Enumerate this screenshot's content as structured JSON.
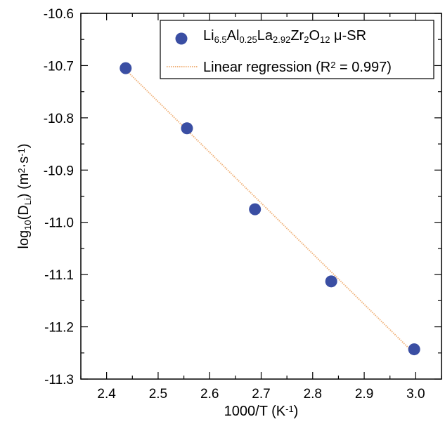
{
  "chart_data": {
    "type": "scatter",
    "xlabel": "1000/T (K⁻¹)",
    "xlabel_parts": {
      "main": "1000/T (K",
      "sup": "-1",
      "end": ")"
    },
    "ylabel": "log10(DLi) (m2·s-1)",
    "ylabel_parts": {
      "a": "log",
      "a_sub": "10",
      "b": "(D",
      "b_sub": "Li",
      "c": ") (m",
      "c_sup": "2",
      "d": "·s",
      "d_sup": "-1",
      "e": ")"
    },
    "xlim": [
      2.35,
      3.05
    ],
    "ylim": [
      -11.3,
      -10.6
    ],
    "xticks": [
      2.4,
      2.5,
      2.6,
      2.7,
      2.8,
      2.9,
      3.0
    ],
    "xtick_labels": [
      "2.4",
      "2.5",
      "2.6",
      "2.7",
      "2.8",
      "2.9",
      "3.0"
    ],
    "yticks": [
      -10.6,
      -10.7,
      -10.8,
      -10.9,
      -11.0,
      -11.1,
      -11.2,
      -11.3
    ],
    "ytick_labels": [
      "-10.6",
      "-10.7",
      "-10.8",
      "-10.9",
      "-11.0",
      "-11.1",
      "-11.2",
      "-11.3"
    ],
    "grid": false,
    "legend_position": "top-right",
    "series": [
      {
        "name": "Li6.5Al0.25La2.92Zr2O12 μ-SR",
        "name_parts": [
          {
            "t": "Li"
          },
          {
            "sub": "6.5"
          },
          {
            "t": "Al"
          },
          {
            "sub": "0.25"
          },
          {
            "t": "La"
          },
          {
            "sub": "2.92"
          },
          {
            "t": "Zr"
          },
          {
            "sub": "2"
          },
          {
            "t": "O"
          },
          {
            "sub": "12"
          },
          {
            "t": " μ-SR"
          }
        ],
        "kind": "scatter",
        "color": "#3a4ea3",
        "x": [
          2.437,
          2.556,
          2.688,
          2.836,
          2.997
        ],
        "y": [
          -10.705,
          -10.82,
          -10.975,
          -11.113,
          -11.243
        ]
      },
      {
        "name": "Linear regression (R2 = 0.997)",
        "name_parts": [
          {
            "t": "Linear regression (R"
          },
          {
            "sup": "2"
          },
          {
            "t": " = 0.997)"
          }
        ],
        "kind": "line",
        "color": "#f0b27a",
        "x": [
          2.437,
          2.997
        ],
        "y": [
          -10.708,
          -11.251
        ]
      }
    ]
  }
}
